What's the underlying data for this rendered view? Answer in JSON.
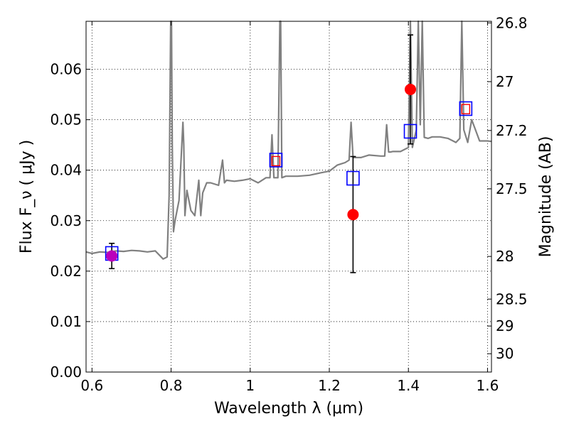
{
  "chart_data": {
    "type": "scatter",
    "title": "",
    "xlabel": "Wavelength  λ (μm)",
    "ylabel": "Flux  F_ν  ( μJy )",
    "ylabel_right": "Magnitude (AB)",
    "xlim": [
      0.585,
      1.61
    ],
    "ylim": [
      0.0,
      0.0695
    ],
    "xticks": [
      0.6,
      0.8,
      1.0,
      1.2,
      1.4,
      1.6
    ],
    "xtick_labels": [
      "0.6",
      "0.8",
      "1",
      "1.2",
      "1.4",
      "1.6"
    ],
    "yticks": [
      0.0,
      0.01,
      0.02,
      0.03,
      0.04,
      0.05,
      0.06
    ],
    "ytick_labels": [
      "0.00",
      "0.01",
      "0.02",
      "0.03",
      "0.04",
      "0.05",
      "0.06"
    ],
    "right_ticks": [
      26.8,
      27,
      27.2,
      27.5,
      28,
      28.5,
      29,
      30
    ],
    "right_tick_labels": [
      "26.8",
      "27",
      "27.2",
      "27.5",
      "28",
      "28.5",
      "29",
      "30"
    ],
    "grid": true,
    "colors": {
      "model": "#808080",
      "model_box": "#0000ff",
      "observed": "#ff0000",
      "observed_first": "#bb00bb",
      "errorbar": "#000000"
    },
    "series": [
      {
        "name": "",
        "kind": "line",
        "x": [
          0.585,
          0.6,
          0.62,
          0.64,
          0.66,
          0.68,
          0.7,
          0.72,
          0.74,
          0.76,
          0.78,
          0.79,
          0.795,
          0.799,
          0.8,
          0.801,
          0.803,
          0.806,
          0.81,
          0.82,
          0.83,
          0.832,
          0.835,
          0.84,
          0.85,
          0.86,
          0.87,
          0.875,
          0.88,
          0.89,
          0.9,
          0.92,
          0.93,
          0.935,
          0.94,
          0.96,
          0.98,
          1.0,
          1.02,
          1.04,
          1.05,
          1.055,
          1.06,
          1.07,
          1.075,
          1.077,
          1.08,
          1.09,
          1.12,
          1.15,
          1.18,
          1.2,
          1.22,
          1.24,
          1.25,
          1.255,
          1.26,
          1.28,
          1.3,
          1.33,
          1.34,
          1.345,
          1.35,
          1.355,
          1.36,
          1.38,
          1.4,
          1.405,
          1.41,
          1.42,
          1.425,
          1.43,
          1.435,
          1.44,
          1.45,
          1.46,
          1.48,
          1.5,
          1.52,
          1.53,
          1.535,
          1.54,
          1.55,
          1.56,
          1.58,
          1.6,
          1.61
        ],
        "y": [
          0.0238,
          0.0235,
          0.0238,
          0.0237,
          0.024,
          0.0239,
          0.0241,
          0.024,
          0.0238,
          0.024,
          0.0224,
          0.0228,
          0.035,
          0.07,
          0.07,
          0.07,
          0.045,
          0.0278,
          0.03,
          0.034,
          0.0495,
          0.045,
          0.031,
          0.036,
          0.032,
          0.031,
          0.038,
          0.031,
          0.0355,
          0.0375,
          0.0375,
          0.037,
          0.042,
          0.0375,
          0.038,
          0.0378,
          0.038,
          0.0383,
          0.0375,
          0.0385,
          0.0385,
          0.047,
          0.0385,
          0.0385,
          0.07,
          0.07,
          0.0385,
          0.0388,
          0.0388,
          0.039,
          0.0395,
          0.0398,
          0.041,
          0.0415,
          0.042,
          0.0495,
          0.0425,
          0.0425,
          0.043,
          0.0428,
          0.0428,
          0.049,
          0.0436,
          0.0436,
          0.0437,
          0.0437,
          0.0445,
          0.07,
          0.0445,
          0.048,
          0.07,
          0.049,
          0.07,
          0.0465,
          0.0463,
          0.0466,
          0.0466,
          0.0463,
          0.0455,
          0.0463,
          0.07,
          0.048,
          0.0455,
          0.05,
          0.0458,
          0.0458,
          0.0457
        ]
      },
      {
        "name": "",
        "kind": "open-square",
        "x": [
          0.65,
          1.065,
          1.26,
          1.405,
          1.545
        ],
        "y": [
          0.0235,
          0.042,
          0.0384,
          0.0477,
          0.0522
        ]
      },
      {
        "name": "",
        "kind": "filled-circle",
        "x": [
          0.65,
          1.26,
          1.405
        ],
        "y": [
          0.023,
          0.0312,
          0.056
        ],
        "err_low": [
          0.0205,
          0.0197,
          0.0452
        ],
        "err_high": [
          0.0255,
          0.0427,
          0.0668
        ]
      },
      {
        "name": "",
        "kind": "small-red-square",
        "x": [
          1.065,
          1.545
        ],
        "y": [
          0.0418,
          0.0521
        ]
      }
    ]
  }
}
